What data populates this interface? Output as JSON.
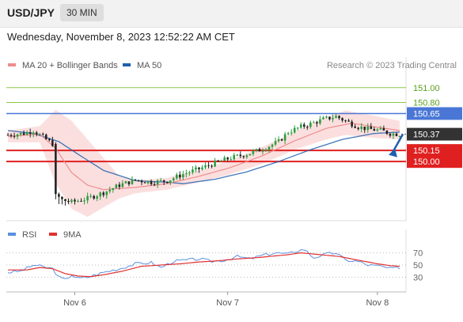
{
  "header": {
    "symbol": "USD/JPY",
    "timeframe": "30 MIN",
    "datetime": "Wednesday, November 8, 2023 12:52:22 AM CET"
  },
  "credit": "Research © 2023 Trading Central",
  "colors": {
    "ma20": "#f08c8c",
    "ma50": "#1f5fae",
    "bb_fill": "#f7c5c5",
    "up_candle": "#2e9c3f",
    "down_candle": "#222222",
    "resistance": "#8cc84b",
    "pivot": "#4a77d6",
    "support": "#e02020",
    "rsi": "#5b8fe0",
    "rsi_ma": "#e03030",
    "last_price_bg": "#333333"
  },
  "chart_data": [
    {
      "type": "candlestick",
      "title": "",
      "legend": [
        {
          "label": "MA 20 + Bollinger Bands",
          "color": "#f08c8c"
        },
        {
          "label": "MA 50",
          "color": "#1f5fae"
        }
      ],
      "x_labels": [
        "Nov 6",
        "Nov 7",
        "Nov 8"
      ],
      "x_label_index": [
        21,
        69,
        116
      ],
      "n_bars": 124,
      "ylim": [
        149.22,
        151.18
      ],
      "levels": [
        {
          "label": "151.00",
          "value": 151.0,
          "kind": "resistance"
        },
        {
          "label": "150.80",
          "value": 150.8,
          "kind": "resistance"
        },
        {
          "label": "150.65",
          "value": 150.65,
          "kind": "pivot"
        },
        {
          "label": "150.15",
          "value": 150.15,
          "kind": "support"
        },
        {
          "label": "150.00",
          "value": 150.0,
          "kind": "support"
        }
      ],
      "last_price": {
        "label": "150.37",
        "value": 150.37
      },
      "bias_arrow": {
        "direction": "down",
        "from_value": 150.37,
        "to_value": 150.08
      },
      "close_path": [
        [
          0,
          150.36
        ],
        [
          5,
          150.38
        ],
        [
          8,
          150.42
        ],
        [
          12,
          150.3
        ],
        [
          14,
          150.24
        ],
        [
          15,
          149.55
        ],
        [
          17,
          149.48
        ],
        [
          20,
          149.45
        ],
        [
          25,
          149.5
        ],
        [
          30,
          149.58
        ],
        [
          35,
          149.68
        ],
        [
          40,
          149.75
        ],
        [
          45,
          149.72
        ],
        [
          50,
          149.74
        ],
        [
          55,
          149.83
        ],
        [
          60,
          149.9
        ],
        [
          65,
          149.98
        ],
        [
          70,
          150.05
        ],
        [
          75,
          150.1
        ],
        [
          80,
          150.17
        ],
        [
          85,
          150.27
        ],
        [
          88,
          150.4
        ],
        [
          92,
          150.47
        ],
        [
          95,
          150.51
        ],
        [
          99,
          150.57
        ],
        [
          103,
          150.61
        ],
        [
          106,
          150.55
        ],
        [
          110,
          150.47
        ],
        [
          113,
          150.44
        ],
        [
          117,
          150.42
        ],
        [
          120,
          150.38
        ],
        [
          123,
          150.37
        ]
      ],
      "ma20_path": [
        [
          0,
          150.34
        ],
        [
          10,
          150.37
        ],
        [
          15,
          150.18
        ],
        [
          20,
          149.85
        ],
        [
          25,
          149.68
        ],
        [
          30,
          149.62
        ],
        [
          40,
          149.65
        ],
        [
          50,
          149.7
        ],
        [
          60,
          149.8
        ],
        [
          70,
          149.92
        ],
        [
          80,
          150.08
        ],
        [
          90,
          150.28
        ],
        [
          100,
          150.45
        ],
        [
          108,
          150.52
        ],
        [
          115,
          150.47
        ],
        [
          123,
          150.42
        ]
      ],
      "bb_upper_path": [
        [
          0,
          150.42
        ],
        [
          10,
          150.48
        ],
        [
          15,
          150.7
        ],
        [
          20,
          150.55
        ],
        [
          25,
          150.3
        ],
        [
          30,
          150.05
        ],
        [
          35,
          149.8
        ],
        [
          40,
          149.74
        ],
        [
          50,
          149.78
        ],
        [
          60,
          149.88
        ],
        [
          70,
          150.02
        ],
        [
          80,
          150.2
        ],
        [
          90,
          150.4
        ],
        [
          100,
          150.6
        ],
        [
          106,
          150.69
        ],
        [
          115,
          150.62
        ],
        [
          123,
          150.55
        ]
      ],
      "bb_lower_path": [
        [
          0,
          150.26
        ],
        [
          10,
          150.26
        ],
        [
          15,
          149.7
        ],
        [
          20,
          149.36
        ],
        [
          25,
          149.25
        ],
        [
          30,
          149.38
        ],
        [
          35,
          149.5
        ],
        [
          40,
          149.57
        ],
        [
          50,
          149.62
        ],
        [
          60,
          149.72
        ],
        [
          70,
          149.83
        ],
        [
          80,
          149.97
        ],
        [
          90,
          150.16
        ],
        [
          100,
          150.3
        ],
        [
          106,
          150.36
        ],
        [
          115,
          150.32
        ],
        [
          123,
          150.3
        ]
      ],
      "ma50_path": [
        [
          0,
          150.42
        ],
        [
          8,
          150.38
        ],
        [
          16,
          150.27
        ],
        [
          22,
          150.1
        ],
        [
          30,
          149.88
        ],
        [
          40,
          149.74
        ],
        [
          50,
          149.72
        ],
        [
          55,
          149.7
        ],
        [
          65,
          149.76
        ],
        [
          75,
          149.86
        ],
        [
          85,
          150.0
        ],
        [
          95,
          150.16
        ],
        [
          105,
          150.3
        ],
        [
          115,
          150.38
        ],
        [
          123,
          150.4
        ]
      ]
    },
    {
      "type": "line",
      "title": "",
      "legend": [
        {
          "label": "RSI",
          "color": "#5b8fe0"
        },
        {
          "label": "9MA",
          "color": "#e03030"
        }
      ],
      "ylim": [
        15,
        85
      ],
      "levels": [
        {
          "label": "70",
          "value": 70
        },
        {
          "label": "50",
          "value": 50
        },
        {
          "label": "30",
          "value": 30
        }
      ],
      "series": [
        {
          "name": "RSI",
          "points": [
            [
              0,
              38
            ],
            [
              4,
              40
            ],
            [
              8,
              50
            ],
            [
              12,
              46
            ],
            [
              14,
              44
            ],
            [
              16,
              30
            ],
            [
              18,
              26
            ],
            [
              20,
              34
            ],
            [
              22,
              28
            ],
            [
              25,
              30
            ],
            [
              30,
              38
            ],
            [
              35,
              44
            ],
            [
              40,
              52
            ],
            [
              45,
              54
            ],
            [
              48,
              46
            ],
            [
              52,
              56
            ],
            [
              56,
              58
            ],
            [
              60,
              60
            ],
            [
              64,
              56
            ],
            [
              68,
              58
            ],
            [
              72,
              64
            ],
            [
              76,
              60
            ],
            [
              80,
              66
            ],
            [
              84,
              70
            ],
            [
              88,
              68
            ],
            [
              90,
              72
            ],
            [
              93,
              76
            ],
            [
              96,
              62
            ],
            [
              100,
              68
            ],
            [
              103,
              70
            ],
            [
              106,
              58
            ],
            [
              110,
              56
            ],
            [
              113,
              50
            ],
            [
              117,
              48
            ],
            [
              120,
              44
            ],
            [
              123,
              46
            ]
          ]
        },
        {
          "name": "9MA",
          "points": [
            [
              0,
              42
            ],
            [
              6,
              42
            ],
            [
              10,
              46
            ],
            [
              14,
              44
            ],
            [
              18,
              36
            ],
            [
              22,
              32
            ],
            [
              26,
              31
            ],
            [
              30,
              34
            ],
            [
              36,
              40
            ],
            [
              42,
              48
            ],
            [
              48,
              50
            ],
            [
              54,
              52
            ],
            [
              60,
              55
            ],
            [
              66,
              57
            ],
            [
              72,
              60
            ],
            [
              78,
              62
            ],
            [
              84,
              65
            ],
            [
              88,
              67
            ],
            [
              92,
              70
            ],
            [
              96,
              68
            ],
            [
              100,
              66
            ],
            [
              104,
              64
            ],
            [
              108,
              60
            ],
            [
              112,
              56
            ],
            [
              116,
              52
            ],
            [
              120,
              49
            ],
            [
              123,
              48
            ]
          ]
        }
      ]
    }
  ]
}
